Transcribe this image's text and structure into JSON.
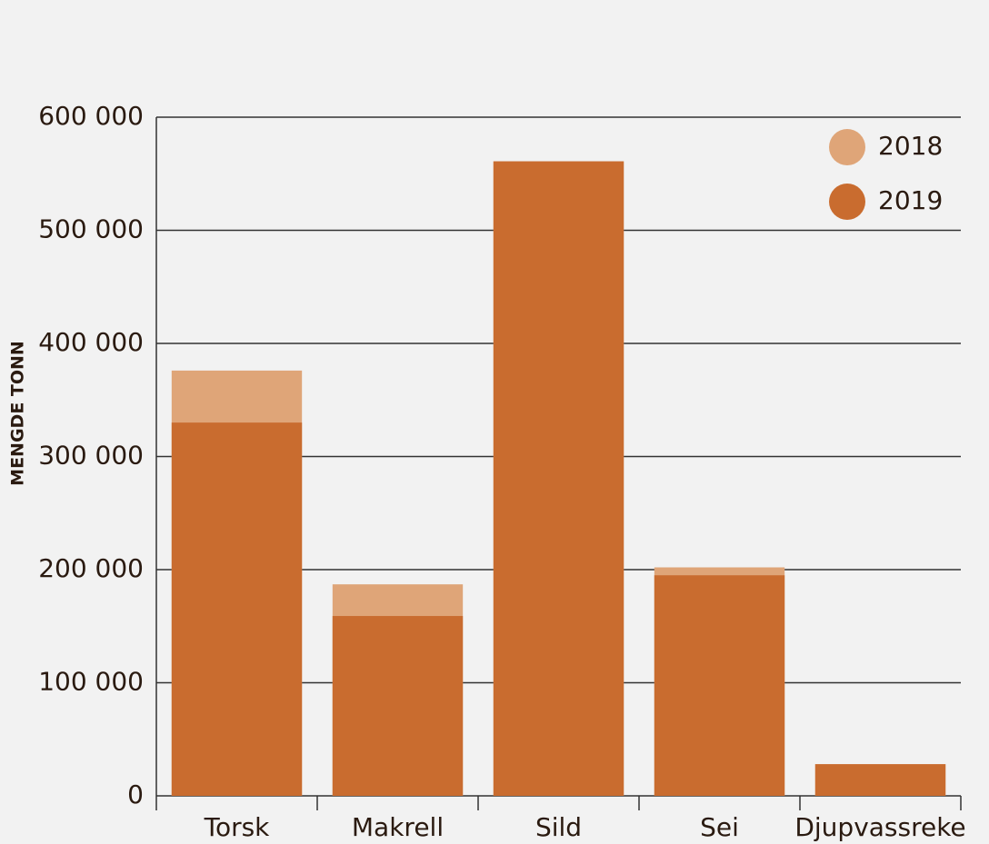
{
  "chart_data": {
    "type": "bar",
    "overlap": true,
    "y_label": "MENGDE TONN",
    "categories": [
      "Torsk",
      "Makrell",
      "Sild",
      "Sei",
      "Djupvassreke"
    ],
    "series": [
      {
        "name": "2018",
        "color": "#dfa578",
        "values": [
          376000,
          187000,
          561000,
          202000,
          28000
        ]
      },
      {
        "name": "2019",
        "color": "#c96c2f",
        "values": [
          330000,
          159000,
          561000,
          195000,
          28000
        ]
      }
    ],
    "ylim": [
      0,
      600000
    ],
    "yticks": [
      0,
      {
        "value": 100000,
        "label": "100 000"
      },
      {
        "value": 200000,
        "label": "200 000"
      },
      {
        "value": 300000,
        "label": "300 000"
      },
      {
        "value": 400000,
        "label": "400 000"
      },
      {
        "value": 500000,
        "label": "500 000"
      },
      {
        "value": 600000,
        "label": "600 000"
      }
    ],
    "grid": true,
    "legend": "top-right"
  }
}
